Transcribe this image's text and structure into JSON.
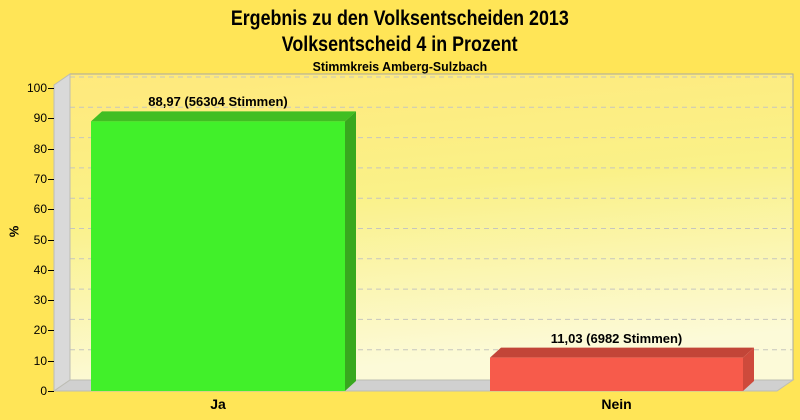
{
  "chart_data": {
    "type": "bar",
    "style": "3d-bars",
    "title": "Ergebnis zu den Volksentscheiden 2013",
    "subtitle": "Volksentscheid 4 in Prozent",
    "subtitle2": "Stimmkreis Amberg-Sulzbach",
    "categories": [
      "Ja",
      "Nein"
    ],
    "values": [
      88.97,
      11.03
    ],
    "votes": [
      56304,
      6982
    ],
    "bar_labels": [
      "88,97 (56304 Stimmen)",
      "11,03 (6982 Stimmen)"
    ],
    "xlabel": "",
    "ylabel": "%",
    "ylim": [
      0,
      100
    ],
    "ytick_step": 10,
    "yticks": [
      0,
      10,
      20,
      30,
      40,
      50,
      60,
      70,
      80,
      90,
      100
    ],
    "grid": "dashed-horizontal",
    "legend": "none"
  },
  "colors": {
    "background": "#FFE557",
    "plot_wall_gradient": [
      "#FFE97C",
      "#FAF188",
      "#FCFAD8"
    ],
    "side_wall": "#D9D9D9",
    "floor": "#D0D0D0",
    "grid": "#C6C6BE",
    "text": "#000000",
    "bars": [
      {
        "front": "#41F02A",
        "top": "#41BE23",
        "side": "#38A81E"
      },
      {
        "front": "#F75B4B",
        "top": "#C24538",
        "side": "#CE4A3C"
      }
    ]
  }
}
